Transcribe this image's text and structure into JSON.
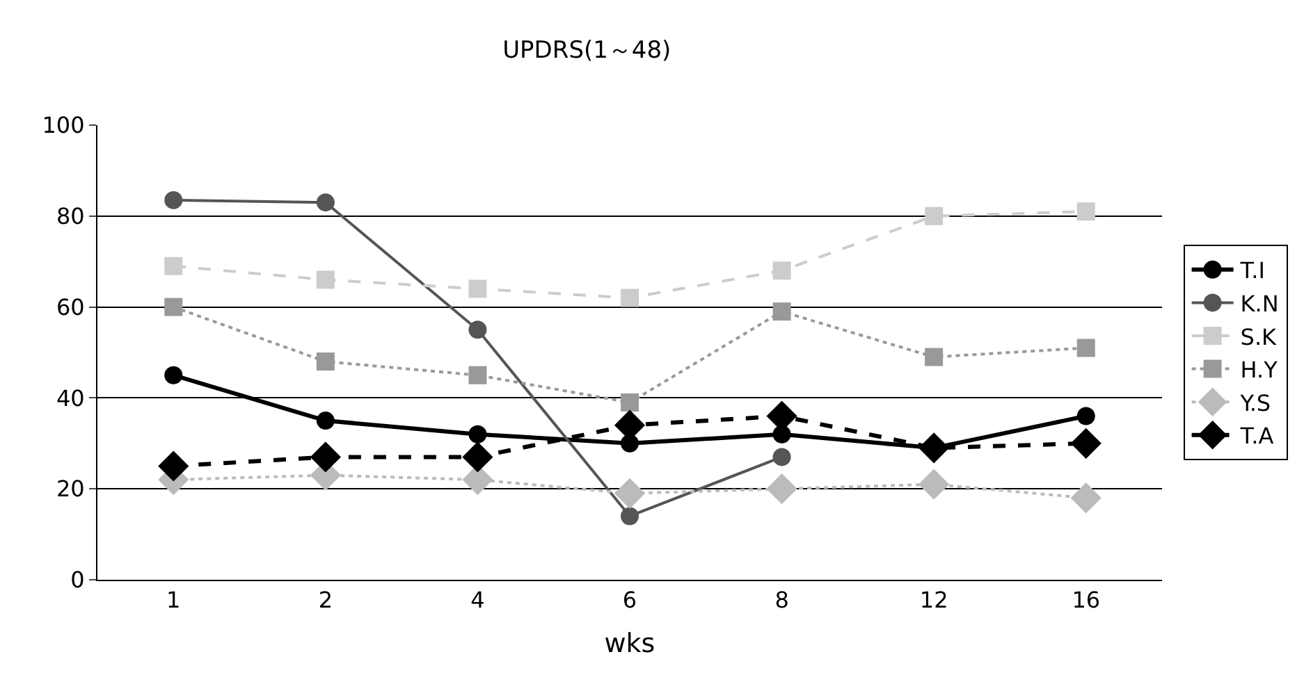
{
  "chart_data": {
    "type": "line",
    "title": "UPDRS(1～48)",
    "xlabel": "wks",
    "categories": [
      "1",
      "2",
      "4",
      "6",
      "8",
      "12",
      "16"
    ],
    "ylim": [
      0,
      100
    ],
    "yticks": [
      0,
      20,
      40,
      60,
      80,
      100
    ],
    "grid": "y",
    "legend": "right",
    "series": [
      {
        "name": "T.I",
        "color": "#000000",
        "marker": "circle",
        "line_style": "solid",
        "values": [
          45,
          35,
          32,
          30,
          32,
          29,
          36
        ]
      },
      {
        "name": "K.N",
        "color": "#555555",
        "marker": "circle",
        "line_style": "solid",
        "values": [
          83.5,
          83,
          55,
          14,
          27,
          null,
          null
        ]
      },
      {
        "name": "S.K",
        "color": "#cccccc",
        "marker": "square",
        "line_style": "dashed",
        "values": [
          69,
          66,
          64,
          62,
          68,
          80,
          81
        ]
      },
      {
        "name": "H.Y",
        "color": "#999999",
        "marker": "square",
        "line_style": "dotted",
        "values": [
          60,
          48,
          45,
          39,
          59,
          49,
          51
        ]
      },
      {
        "name": "Y.S",
        "color": "#bbbbbb",
        "marker": "diamond",
        "line_style": "dotted",
        "values": [
          22,
          23,
          22,
          19,
          20,
          21,
          18
        ]
      },
      {
        "name": "T.A",
        "color": "#000000",
        "marker": "diamond",
        "line_style": "dashed",
        "values": [
          25,
          27,
          27,
          34,
          36,
          29,
          30
        ]
      }
    ]
  }
}
